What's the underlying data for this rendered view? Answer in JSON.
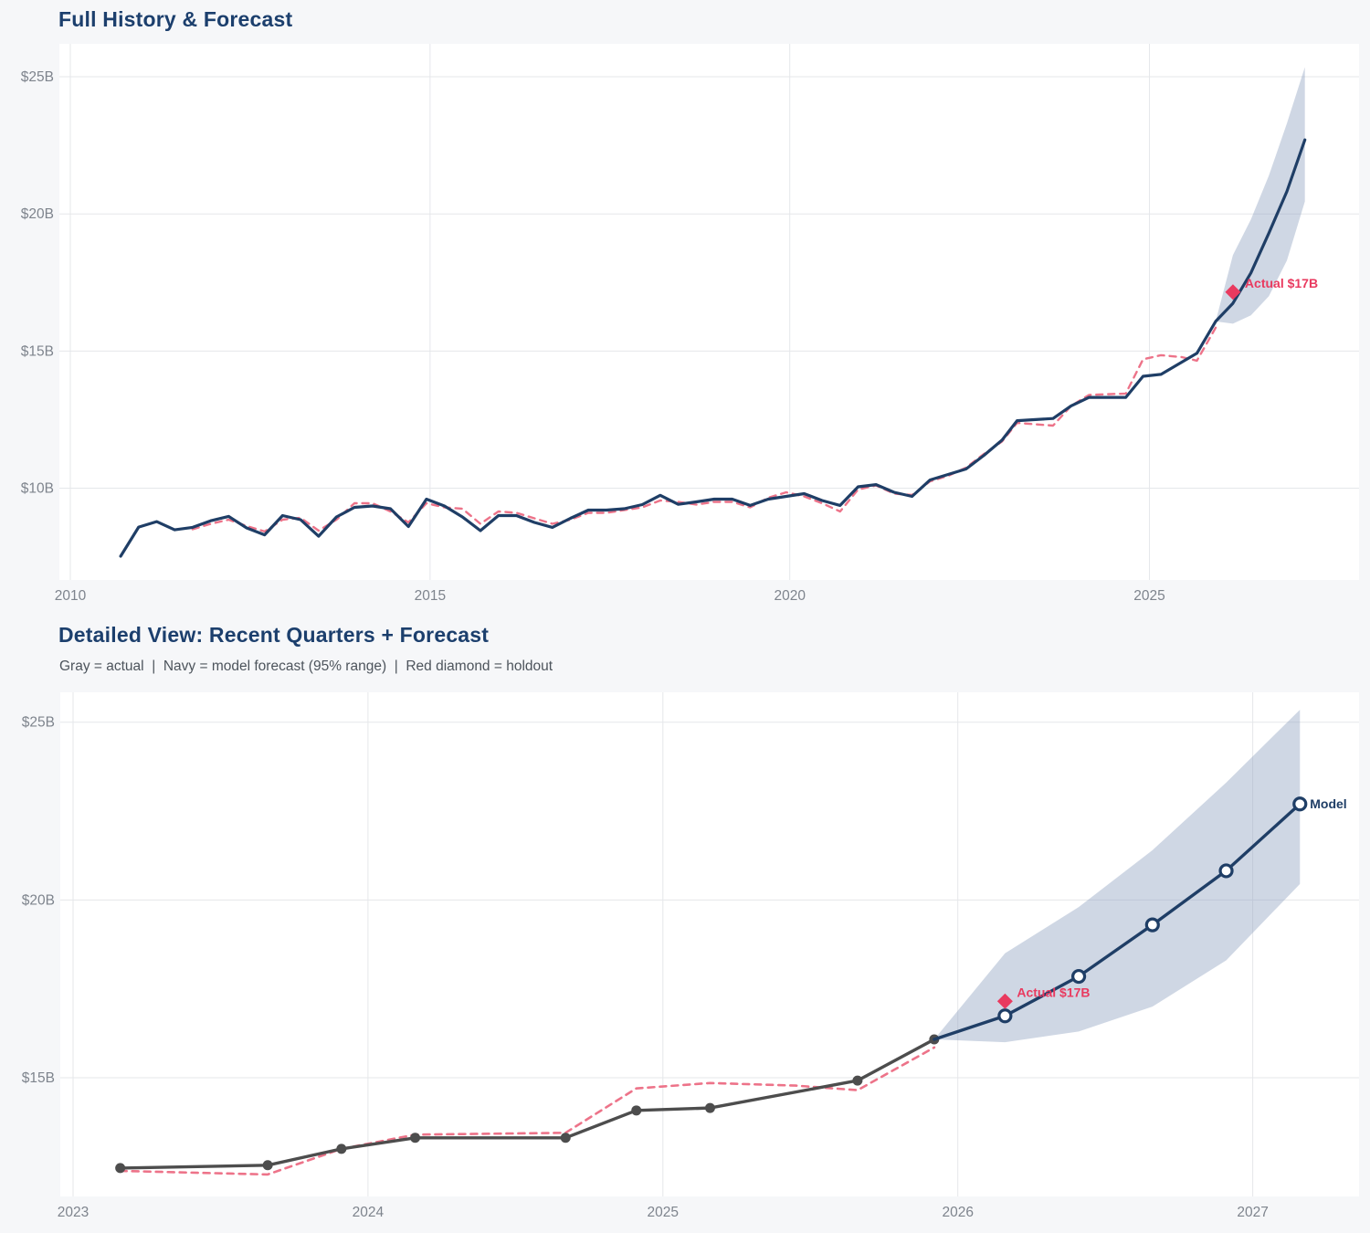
{
  "colors": {
    "page_bg": "#f6f7f9",
    "plot_bg": "#ffffff",
    "grid": "#e5e7ea",
    "navy": "#1f3e66",
    "pink_dashed": "#ed7389",
    "crimson": "#e93a5f",
    "gray_line": "#4d4d4d",
    "band": "rgba(140,160,190,0.42)",
    "tick_label": "#7e848d",
    "title": "#1c3f6d",
    "subtitle": "#4d545c"
  },
  "chart_data": [
    {
      "id": "full-history-forecast",
      "type": "line",
      "title": "Full History & Forecast",
      "subtitle": null,
      "x_axis": {
        "ticks": [
          2010,
          2015,
          2020,
          2025
        ],
        "tick_labels": [
          "2010",
          "2015",
          "2020",
          "2025"
        ],
        "range": [
          2009.8,
          2027.9
        ]
      },
      "y_axis": {
        "ticks": [
          10,
          15,
          20,
          25
        ],
        "tick_labels": [
          "$10B",
          "$15B",
          "$20B",
          "$25B"
        ],
        "range": [
          6.6,
          26.3
        ]
      },
      "grid": true,
      "band": {
        "label": "95% forecast range",
        "x": [
          2025.92,
          2026.16,
          2026.41,
          2026.66,
          2026.91,
          2027.16
        ],
        "lower": [
          16.08,
          16.0,
          16.3,
          17.0,
          18.3,
          20.45
        ],
        "upper": [
          16.08,
          18.5,
          19.8,
          21.4,
          23.3,
          25.35
        ]
      },
      "series": [
        {
          "name": "model-fit-historical",
          "color": "#ed7389",
          "dash": true,
          "width": 2.4,
          "marker": null,
          "x": [
            2011.7,
            2011.95,
            2012.2,
            2012.45,
            2012.7,
            2012.95,
            2013.2,
            2013.45,
            2013.7,
            2013.95,
            2014.2,
            2014.45,
            2014.7,
            2014.95,
            2015.2,
            2015.45,
            2015.7,
            2015.95,
            2016.2,
            2016.45,
            2016.7,
            2016.95,
            2017.2,
            2017.45,
            2017.7,
            2017.95,
            2018.2,
            2018.45,
            2018.7,
            2018.95,
            2019.2,
            2019.45,
            2019.7,
            2019.95,
            2020.2,
            2020.45,
            2020.7,
            2020.95,
            2021.2,
            2021.45,
            2021.7,
            2021.95,
            2022.2,
            2022.45,
            2022.7,
            2022.95,
            2023.16,
            2023.66,
            2023.91,
            2024.16,
            2024.67,
            2024.91,
            2025.16,
            2025.45,
            2025.66,
            2025.92
          ],
          "y": [
            8.5,
            8.7,
            8.85,
            8.62,
            8.42,
            8.85,
            8.92,
            8.45,
            8.85,
            9.45,
            9.45,
            9.15,
            8.75,
            9.45,
            9.3,
            9.25,
            8.7,
            9.15,
            9.1,
            8.9,
            8.7,
            8.85,
            9.1,
            9.1,
            9.2,
            9.3,
            9.55,
            9.5,
            9.4,
            9.5,
            9.5,
            9.3,
            9.65,
            9.85,
            9.7,
            9.45,
            9.15,
            9.95,
            10.1,
            9.8,
            9.75,
            10.25,
            10.45,
            10.75,
            11.25,
            11.7,
            12.38,
            12.28,
            13.0,
            13.4,
            13.45,
            14.7,
            14.85,
            14.78,
            14.65,
            15.85
          ]
        },
        {
          "name": "actual-history-plus-forecast",
          "color": "#1f3e66",
          "dash": false,
          "width": 3.2,
          "marker": null,
          "x": [
            2010.7,
            2010.95,
            2011.2,
            2011.45,
            2011.7,
            2011.95,
            2012.2,
            2012.45,
            2012.7,
            2012.95,
            2013.2,
            2013.45,
            2013.7,
            2013.95,
            2014.2,
            2014.45,
            2014.7,
            2014.95,
            2015.2,
            2015.45,
            2015.7,
            2015.95,
            2016.2,
            2016.45,
            2016.7,
            2016.95,
            2017.2,
            2017.45,
            2017.7,
            2017.95,
            2018.2,
            2018.45,
            2018.7,
            2018.95,
            2019.2,
            2019.45,
            2019.7,
            2019.95,
            2020.2,
            2020.45,
            2020.7,
            2020.95,
            2021.2,
            2021.45,
            2021.7,
            2021.95,
            2022.2,
            2022.45,
            2022.7,
            2022.95,
            2023.16,
            2023.66,
            2023.91,
            2024.16,
            2024.67,
            2024.91,
            2025.16,
            2025.66,
            2025.92,
            2026.16,
            2026.41,
            2026.66,
            2026.91,
            2027.16
          ],
          "y": [
            7.52,
            8.58,
            8.78,
            8.48,
            8.57,
            8.81,
            8.97,
            8.55,
            8.3,
            9.0,
            8.85,
            8.25,
            8.95,
            9.3,
            9.35,
            9.25,
            8.6,
            9.6,
            9.35,
            8.95,
            8.45,
            9.0,
            9.0,
            8.75,
            8.57,
            8.9,
            9.2,
            9.2,
            9.25,
            9.4,
            9.74,
            9.41,
            9.5,
            9.6,
            9.6,
            9.37,
            9.6,
            9.7,
            9.8,
            9.55,
            9.37,
            10.05,
            10.13,
            9.85,
            9.7,
            10.3,
            10.5,
            10.7,
            11.2,
            11.75,
            12.46,
            12.54,
            13.0,
            13.31,
            13.31,
            14.08,
            14.15,
            14.92,
            16.08,
            16.74,
            17.85,
            19.3,
            20.82,
            22.7
          ]
        }
      ],
      "annotations": [
        {
          "text": "Actual $17B",
          "x": 2026.16,
          "y": 17.15,
          "marker": "diamond",
          "color": "#e93a5f"
        }
      ]
    },
    {
      "id": "detailed-recent-quarters",
      "type": "line",
      "title": "Detailed View: Recent Quarters + Forecast",
      "subtitle": "Gray = actual  |  Navy = model forecast (95% range)  |  Red diamond = holdout",
      "x_axis": {
        "ticks": [
          2023,
          2024,
          2025,
          2026,
          2027
        ],
        "tick_labels": [
          "2023",
          "2024",
          "2025",
          "2026",
          "2027"
        ],
        "range": [
          2022.96,
          2027.36
        ]
      },
      "y_axis": {
        "ticks": [
          15,
          20,
          25
        ],
        "tick_labels": [
          "$15B",
          "$20B",
          "$25B"
        ],
        "range": [
          11.67,
          25.85
        ]
      },
      "grid": true,
      "band": {
        "label": "95% forecast range",
        "x": [
          2025.92,
          2026.16,
          2026.41,
          2026.66,
          2026.91,
          2027.16
        ],
        "lower": [
          16.08,
          16.0,
          16.3,
          17.0,
          18.3,
          20.45
        ],
        "upper": [
          16.08,
          18.5,
          19.8,
          21.4,
          23.3,
          25.35
        ]
      },
      "series": [
        {
          "name": "model-fit-recent",
          "color": "#ed7389",
          "dash": true,
          "width": 2.6,
          "marker": null,
          "x": [
            2023.16,
            2023.66,
            2023.91,
            2024.16,
            2024.67,
            2024.91,
            2025.16,
            2025.45,
            2025.66,
            2025.92
          ],
          "y": [
            12.38,
            12.28,
            13.0,
            13.4,
            13.45,
            14.7,
            14.85,
            14.78,
            14.65,
            15.85
          ]
        },
        {
          "name": "actual-recent-quarters",
          "color": "#4d4d4d",
          "dash": false,
          "width": 3.4,
          "marker": "dot",
          "marker_size": 5.5,
          "x": [
            2023.16,
            2023.66,
            2023.91,
            2024.16,
            2024.67,
            2024.91,
            2025.16,
            2025.66,
            2025.92
          ],
          "y": [
            12.46,
            12.54,
            13.0,
            13.31,
            13.31,
            14.08,
            14.15,
            14.92,
            16.08
          ]
        },
        {
          "name": "model-forecast",
          "color": "#1f3e66",
          "dash": false,
          "width": 3.4,
          "marker": "open-circle",
          "marker_size": 6.5,
          "marker_skip_first": true,
          "end_label": "Model",
          "x": [
            2025.92,
            2026.16,
            2026.41,
            2026.66,
            2026.91,
            2027.16
          ],
          "y": [
            16.08,
            16.74,
            17.85,
            19.3,
            20.82,
            22.7
          ]
        }
      ],
      "annotations": [
        {
          "text": "Actual $17B",
          "x": 2026.16,
          "y": 17.15,
          "marker": "diamond",
          "color": "#e93a5f"
        }
      ]
    }
  ]
}
